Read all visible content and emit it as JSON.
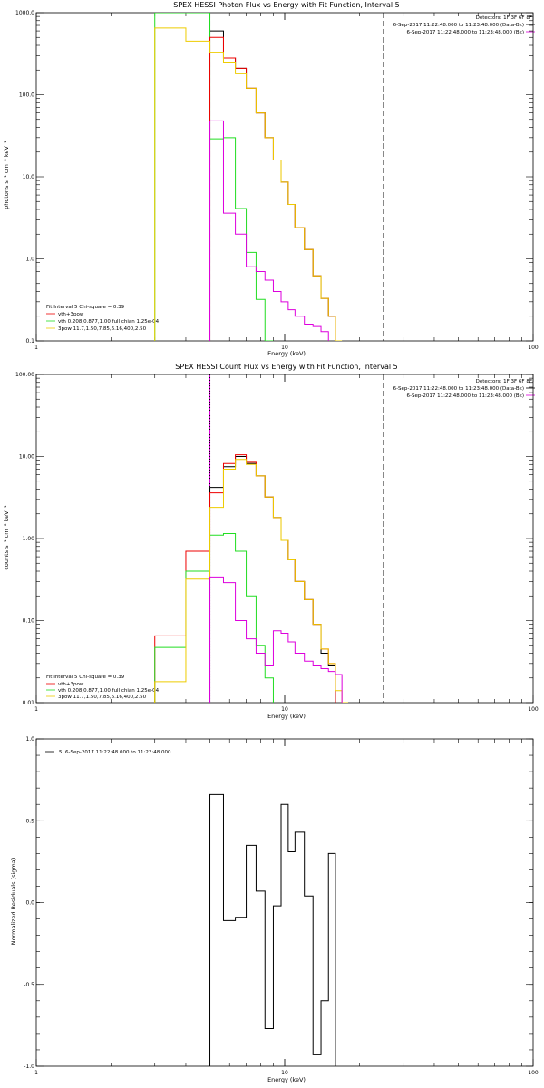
{
  "chart_data": [
    {
      "type": "line",
      "title": "SPEX HESSI Photon Flux vs Energy with Fit Function, Interval 5",
      "xlabel": "Energy (keV)",
      "ylabel": "photons s⁻¹ cm⁻² keV⁻¹",
      "xscale": "log",
      "yscale": "log",
      "xlim": [
        1,
        100
      ],
      "ylim": [
        0.1,
        1000
      ],
      "xticks": [
        {
          "value": 1,
          "label": "1"
        },
        {
          "value": 10,
          "label": "10"
        },
        {
          "value": 100,
          "label": "100"
        }
      ],
      "yticks": [
        {
          "value": 0.1,
          "label": "0.1"
        },
        {
          "value": 1,
          "label": "1.0"
        },
        {
          "value": 10,
          "label": "10.0"
        },
        {
          "value": 100,
          "label": "100.0"
        },
        {
          "value": 1000,
          "label": "1000.0"
        }
      ],
      "edges": [
        3,
        4,
        5,
        5.67,
        6.33,
        7,
        7.67,
        8.33,
        9,
        9.67,
        10.33,
        11,
        12,
        13,
        14,
        15,
        16,
        17,
        18,
        19,
        20,
        21,
        22,
        23,
        24,
        25,
        26,
        28
      ],
      "series": [
        {
          "id": "data",
          "color": "#000000",
          "values": [
            null,
            null,
            600,
            280,
            210,
            120,
            60,
            30,
            16,
            8.6,
            4.6,
            2.4,
            1.3,
            0.62,
            0.33,
            0.2,
            null,
            null,
            null,
            null,
            null,
            null,
            null,
            null,
            null,
            null,
            null
          ]
        },
        {
          "id": "vth",
          "color": "#22dd22",
          "values": [
            1000,
            1000,
            29,
            30,
            4.1,
            1.2,
            0.32,
            0.1,
            null,
            null,
            null,
            null,
            null,
            null,
            null,
            null,
            null,
            null,
            null,
            null,
            null,
            null,
            null,
            null,
            null,
            null,
            null
          ]
        },
        {
          "id": "vth+3pow",
          "color": "#ee0000",
          "values": [
            null,
            null,
            500,
            280,
            210,
            120,
            60,
            30,
            16,
            8.6,
            4.6,
            2.4,
            1.3,
            0.62,
            0.33,
            0.2,
            null,
            null,
            null,
            null,
            null,
            null,
            null,
            null,
            null,
            null,
            null
          ]
        },
        {
          "id": "3pow",
          "color": "#eecc00",
          "values": [
            650,
            450,
            330,
            250,
            180,
            120,
            60,
            30,
            16,
            8.6,
            4.6,
            2.4,
            1.3,
            0.62,
            0.33,
            0.2,
            0.1,
            null,
            null,
            null,
            null,
            null,
            null,
            null,
            null,
            null,
            null
          ]
        },
        {
          "id": "bkg",
          "color": "#dd00dd",
          "values": [
            null,
            null,
            48,
            3.6,
            2.0,
            0.8,
            0.7,
            0.55,
            0.4,
            0.3,
            0.24,
            0.2,
            0.16,
            0.15,
            0.13,
            null,
            null,
            null,
            null,
            null,
            null,
            null,
            null,
            null,
            null,
            null,
            null
          ]
        }
      ],
      "vlines": [
        {
          "x": 5,
          "color": "#dd00dd",
          "style": "dashed"
        },
        {
          "x": 5,
          "color": "#22dd22",
          "style": "solid"
        },
        {
          "x": 25,
          "color": "#000000",
          "style": "dashed"
        }
      ],
      "info": {
        "line1": "Detectors: 1F 3F 6F 8F",
        "line2": "6-Sep-2017 11:22:48.000 to 11:23:48.000 (Data-Bk)",
        "line3": "6-Sep-2017 11:22:48.000 to 11:23:48.000 (Bk)"
      },
      "legend": {
        "header": "Fit Interval 5   Chi-square = 0.39",
        "entries": [
          {
            "label": "vth+3pow",
            "color": "#ee0000"
          },
          {
            "label": "vth 0.208,0.877,1.00  full chian 1.25e-04",
            "color": "#22dd22"
          },
          {
            "label": "3pow 11.7,1.50,7.85,6.16,400,2.50",
            "color": "#eecc00"
          }
        ]
      }
    },
    {
      "type": "line",
      "title": "SPEX HESSI Count Flux vs Energy with Fit Function, Interval 5",
      "xlabel": "Energy (keV)",
      "ylabel": "counts s⁻¹ cm⁻² keV⁻¹",
      "xscale": "log",
      "yscale": "log",
      "xlim": [
        1,
        100
      ],
      "ylim": [
        0.01,
        100
      ],
      "xticks": [
        {
          "value": 1,
          "label": "1"
        },
        {
          "value": 10,
          "label": "10"
        },
        {
          "value": 100,
          "label": "100"
        }
      ],
      "yticks": [
        {
          "value": 0.01,
          "label": "0.01"
        },
        {
          "value": 0.1,
          "label": "0.10"
        },
        {
          "value": 1,
          "label": "1.00"
        },
        {
          "value": 10,
          "label": "10.00"
        },
        {
          "value": 100,
          "label": "100.00"
        }
      ],
      "edges": [
        3,
        4,
        5,
        5.67,
        6.33,
        7,
        7.67,
        8.33,
        9,
        9.67,
        10.33,
        11,
        12,
        13,
        14,
        15,
        16,
        17,
        18,
        19,
        20,
        21,
        22,
        23,
        24,
        25,
        26,
        28
      ],
      "series": [
        {
          "id": "data",
          "color": "#000000",
          "values": [
            null,
            null,
            4.2,
            7.5,
            10,
            8.2,
            5.8,
            3.2,
            1.8,
            0.95,
            0.55,
            0.3,
            0.18,
            0.09,
            0.04,
            0.028,
            null,
            null,
            null,
            null,
            null,
            null,
            null,
            null,
            null,
            null,
            null
          ]
        },
        {
          "id": "vth+3pow",
          "color": "#ee0000",
          "values": [
            0.065,
            0.7,
            3.6,
            8.2,
            10.5,
            8.5,
            5.8,
            3.2,
            1.8,
            0.95,
            0.55,
            0.3,
            0.18,
            0.09,
            0.045,
            0.03,
            null,
            null,
            null,
            null,
            null,
            null,
            null,
            null,
            null,
            null,
            null
          ]
        },
        {
          "id": "vth",
          "color": "#22dd22",
          "values": [
            0.047,
            0.4,
            1.1,
            1.15,
            0.7,
            0.2,
            0.05,
            0.02,
            null,
            null,
            null,
            null,
            null,
            null,
            null,
            null,
            null,
            null,
            null,
            null,
            null,
            null,
            null,
            null,
            null,
            null,
            null
          ]
        },
        {
          "id": "3pow",
          "color": "#eecc00",
          "values": [
            0.018,
            0.32,
            2.4,
            7.0,
            9.2,
            8.0,
            5.8,
            3.2,
            1.8,
            0.95,
            0.55,
            0.3,
            0.18,
            0.09,
            0.045,
            0.03,
            0.014,
            0.01,
            null,
            null,
            null,
            null,
            null,
            null,
            null,
            null,
            null
          ]
        },
        {
          "id": "bkg",
          "color": "#dd00dd",
          "values": [
            null,
            null,
            0.34,
            0.29,
            0.1,
            0.06,
            0.04,
            0.028,
            0.075,
            0.07,
            0.055,
            0.04,
            0.032,
            0.028,
            0.026,
            0.024,
            0.022,
            null,
            null,
            null,
            null,
            null,
            null,
            null,
            null,
            null,
            null
          ]
        }
      ],
      "vlines": [
        {
          "x": 5,
          "color": "#dd00dd",
          "style": "solid"
        },
        {
          "x": 5,
          "color": "#000000",
          "style": "dotted"
        },
        {
          "x": 25,
          "color": "#000000",
          "style": "dashed"
        }
      ],
      "info": {
        "line1": "Detectors: 1F 3F 6F 8F",
        "line2": "6-Sep-2017 11:22:48.000 to 11:23:48.000 (Data-Bk)",
        "line3": "6-Sep-2017 11:22:48.000 to 11:23:48.000 (Bk)"
      },
      "legend": {
        "header": "Fit Interval 5   Chi-square = 0.39",
        "entries": [
          {
            "label": "vth+3pow",
            "color": "#ee0000"
          },
          {
            "label": "vth 0.208,0.877,1.00  full chian 1.25e-04",
            "color": "#22dd22"
          },
          {
            "label": "3pow 11.7,1.50,7.85,6.16,400,2.50",
            "color": "#eecc00"
          }
        ]
      }
    },
    {
      "type": "line",
      "title": "",
      "xlabel": "Energy (keV)",
      "ylabel": "Normalized Residuals (sigma)",
      "xscale": "log",
      "yscale": "linear",
      "xlim": [
        1,
        100
      ],
      "ylim": [
        -1,
        1
      ],
      "xticks": [
        {
          "value": 1,
          "label": "1"
        },
        {
          "value": 10,
          "label": "10"
        },
        {
          "value": 100,
          "label": "100"
        }
      ],
      "yticks": [
        {
          "value": -1,
          "label": "-1.0"
        },
        {
          "value": -0.5,
          "label": "-0.5"
        },
        {
          "value": 0,
          "label": "0.0"
        },
        {
          "value": 0.5,
          "label": "0.5"
        },
        {
          "value": 1,
          "label": "1.0"
        }
      ],
      "edges": [
        5,
        5.67,
        6.33,
        7,
        7.67,
        8.33,
        9,
        9.67,
        10.33,
        11,
        12,
        13,
        14,
        15,
        16,
        17,
        18,
        19,
        20,
        21,
        22,
        23,
        24,
        25
      ],
      "series": [
        {
          "id": "residuals",
          "color": "#000000",
          "values": [
            0.66,
            -0.11,
            -0.09,
            0.35,
            0.07,
            -0.77,
            -0.02,
            0.6,
            0.31,
            0.43,
            0.04,
            -0.93,
            -0.6,
            0.3
          ]
        }
      ],
      "legend": {
        "entries": [
          {
            "label": "5.  6-Sep-2017 11:22:48.000 to 11:23:48.000",
            "color": "#000000"
          }
        ]
      }
    }
  ]
}
